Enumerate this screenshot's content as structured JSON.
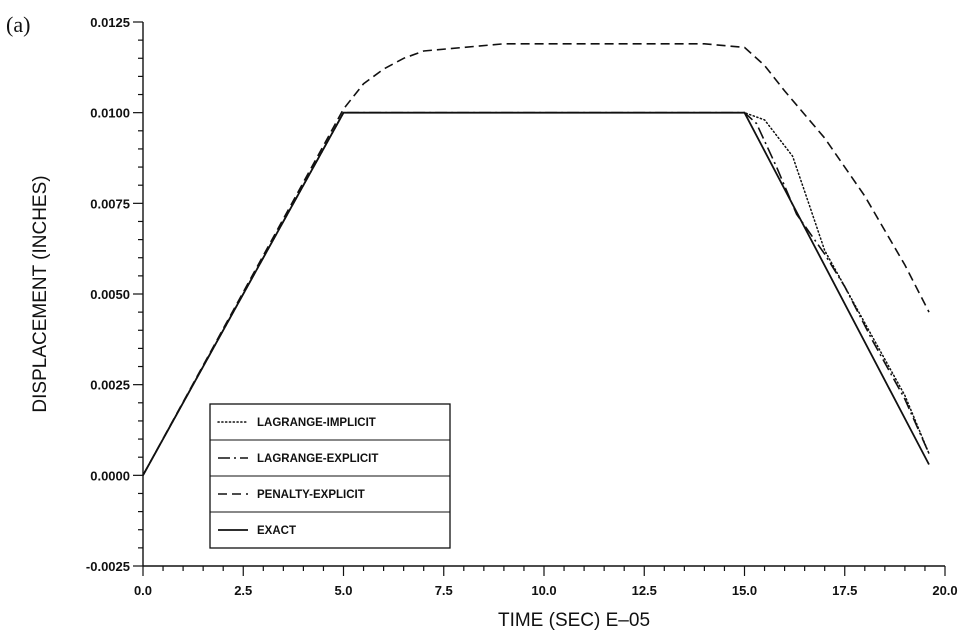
{
  "panel_label": "(a)",
  "chart_data": {
    "type": "line",
    "title": "",
    "xlabel": "TIME (SEC) E–05",
    "ylabel": "DISPLACEMENT (INCHES)",
    "xlim": [
      0.0,
      20.0
    ],
    "ylim": [
      -0.0025,
      0.0125
    ],
    "x_ticks": [
      0.0,
      2.5,
      5.0,
      7.5,
      10.0,
      12.5,
      15.0,
      17.5,
      20.0
    ],
    "x_tick_labels": [
      "0.0",
      "2.5",
      "5.0",
      "7.5",
      "10.0",
      "12.5",
      "15.0",
      "17.5",
      "20.0"
    ],
    "y_ticks": [
      -0.0025,
      0.0,
      0.0025,
      0.005,
      0.0075,
      0.01,
      0.0125
    ],
    "y_tick_labels": [
      "-0.0025",
      "0.0000",
      "0.0025",
      "0.0050",
      "0.0075",
      "0.0100",
      "0.0125"
    ],
    "grid": false,
    "legend_position": "bottom-left",
    "series": [
      {
        "name": "LAGRANGE-IMPLICIT",
        "style": "dotted",
        "x": [
          0.0,
          5.0,
          15.0,
          15.5,
          16.2,
          16.6,
          17.0,
          17.5,
          18.2,
          19.0,
          19.6
        ],
        "y": [
          0.0,
          0.01,
          0.01,
          0.0098,
          0.0088,
          0.0075,
          0.0062,
          0.0052,
          0.0038,
          0.0022,
          0.0006
        ]
      },
      {
        "name": "LAGRANGE-EXPLICIT",
        "style": "dash-dot",
        "x": [
          0.0,
          5.0,
          15.0,
          15.3,
          15.8,
          16.3,
          17.0,
          17.5,
          18.2,
          19.0,
          19.6
        ],
        "y": [
          0.0,
          0.01,
          0.01,
          0.0097,
          0.0085,
          0.0072,
          0.0061,
          0.0052,
          0.0037,
          0.0021,
          0.0006
        ]
      },
      {
        "name": "PENALTY-EXPLICIT",
        "style": "dashed",
        "x": [
          0.0,
          5.0,
          5.5,
          6.0,
          6.5,
          7.0,
          8.0,
          9.0,
          10.0,
          12.0,
          14.0,
          15.0,
          15.5,
          16.0,
          17.0,
          18.0,
          19.0,
          19.6
        ],
        "y": [
          0.0,
          0.0101,
          0.0108,
          0.0112,
          0.0115,
          0.0117,
          0.0118,
          0.0119,
          0.0119,
          0.0119,
          0.0119,
          0.0118,
          0.0113,
          0.0106,
          0.0093,
          0.0077,
          0.0058,
          0.0045
        ]
      },
      {
        "name": "EXACT",
        "style": "solid",
        "x": [
          0.0,
          5.0,
          15.0,
          19.6
        ],
        "y": [
          0.0,
          0.01,
          0.01,
          0.0003
        ]
      }
    ]
  }
}
